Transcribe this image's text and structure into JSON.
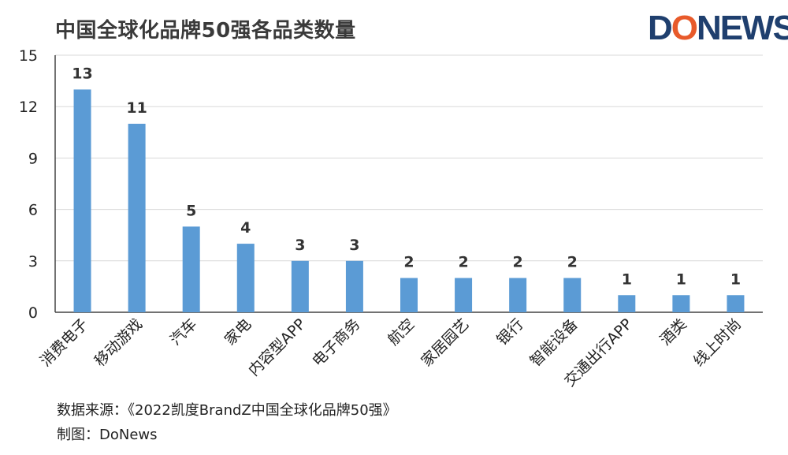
{
  "title": "中国全球化品牌50强各品类数量",
  "logo": {
    "part1": "D",
    "part2": "O",
    "part3": "NEWS"
  },
  "footer": {
    "source": "数据来源：《2022凯度BrandZ中国全球化品牌50强》",
    "author": "制图：DoNews"
  },
  "colors": {
    "bar": "#5b9bd5",
    "grid": "#d9d9d9",
    "axis": "#444444",
    "text": "#222222"
  },
  "chart_data": {
    "type": "bar",
    "title": "中国全球化品牌50强各品类数量",
    "categories": [
      "消费电子",
      "移动游戏",
      "汽车",
      "家电",
      "内容型APP",
      "电子商务",
      "航空",
      "家居园艺",
      "银行",
      "智能设备",
      "交通出行APP",
      "酒类",
      "线上时尚"
    ],
    "values": [
      13,
      11,
      5,
      4,
      3,
      3,
      2,
      2,
      2,
      2,
      1,
      1,
      1
    ],
    "yticks": [
      0,
      3,
      6,
      9,
      12,
      15
    ],
    "ylim": [
      0,
      15
    ],
    "grid": true,
    "data_labels": true,
    "xlabel": "",
    "ylabel": ""
  }
}
